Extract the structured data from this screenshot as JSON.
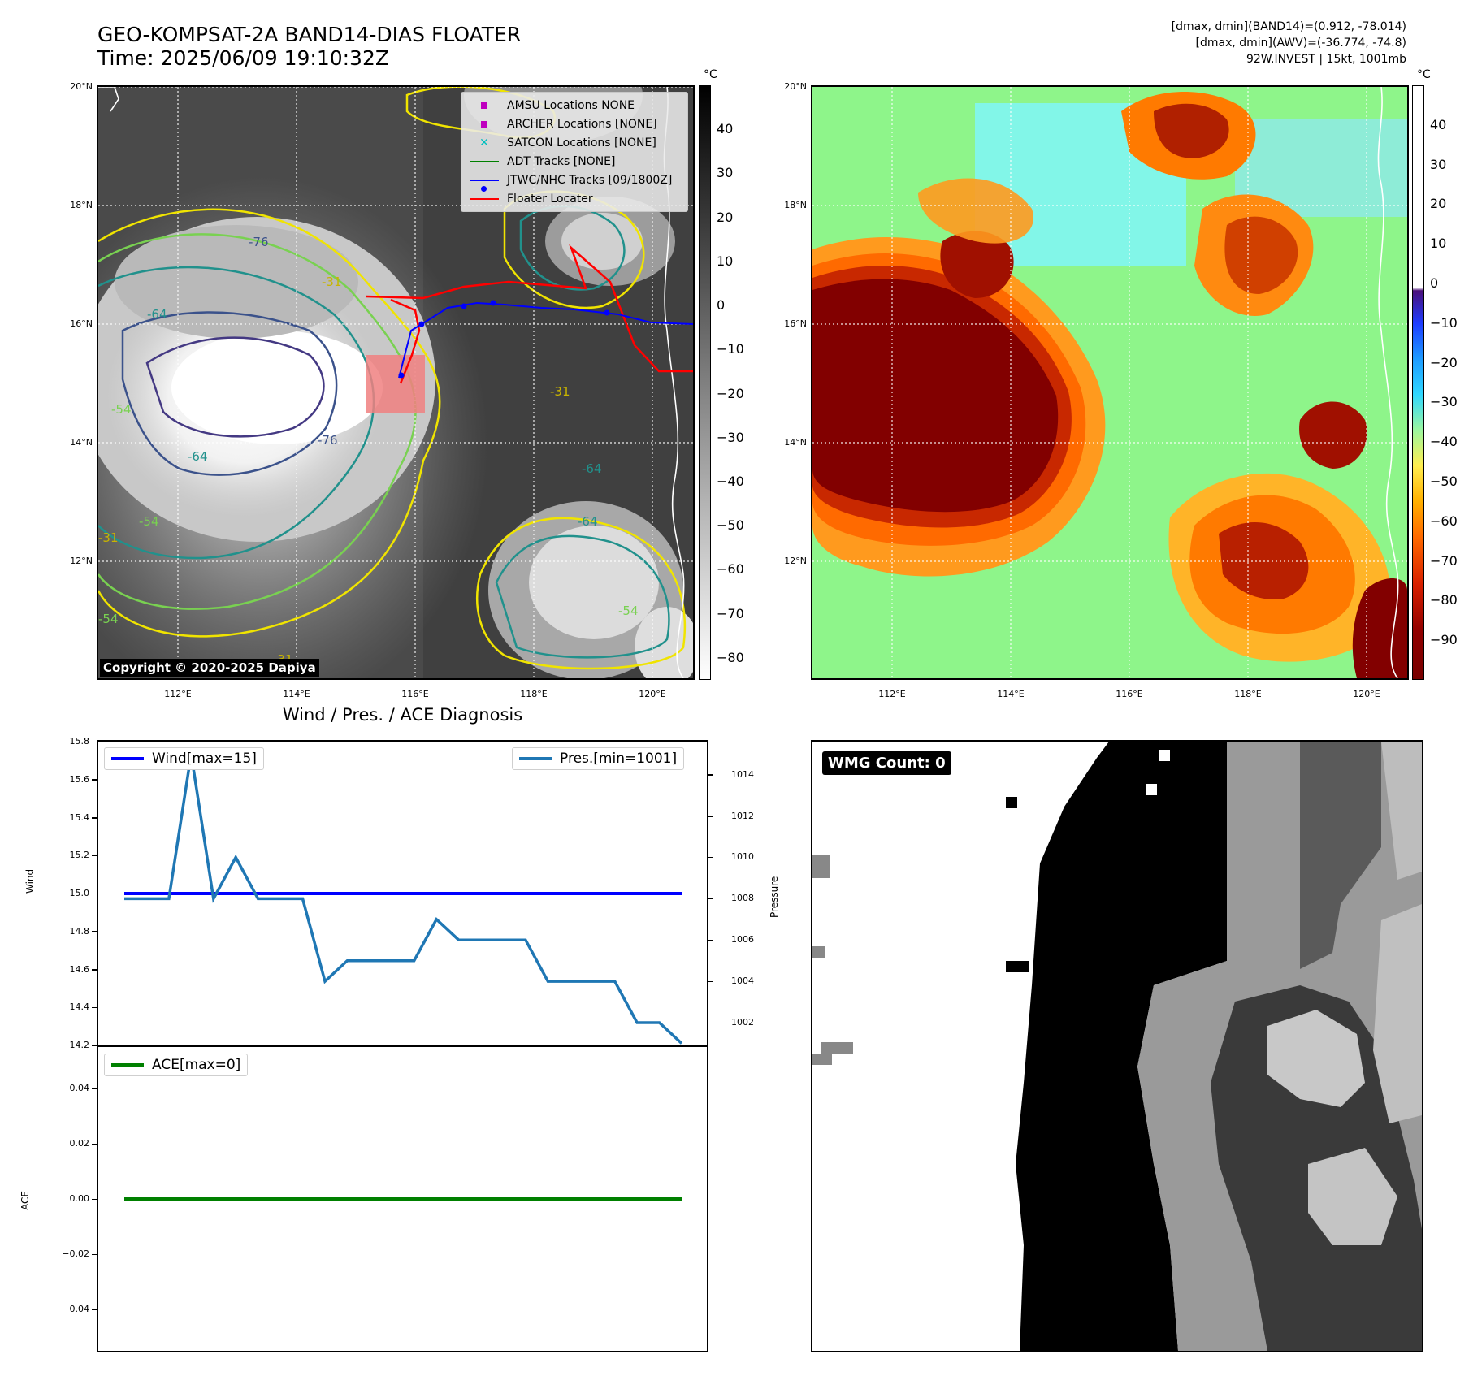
{
  "header": {
    "title_line1": "GEO-KOMPSAT-2A BAND14-DIAS FLOATER",
    "title_line2": "Time: 2025/06/09 19:10:32Z",
    "stats_line1": "[dmax, dmin](BAND14)=(0.912, -78.014)",
    "stats_line2": "[dmax, dmin](AWV)=(-36.774, -74.8)",
    "stats_line3": "92W.INVEST | 15kt, 1001mb"
  },
  "map_axes": {
    "lat_labels": [
      "20°N",
      "18°N",
      "16°N",
      "14°N",
      "12°N"
    ],
    "lon_labels": [
      "112°E",
      "114°E",
      "116°E",
      "118°E",
      "120°E"
    ]
  },
  "ir_panel": {
    "colorbar_unit": "°C",
    "colorbar_ticks": [
      "40",
      "30",
      "20",
      "10",
      "0",
      "−10",
      "−20",
      "−30",
      "−40",
      "−50",
      "−60",
      "−70",
      "−80"
    ],
    "copyright": "Copyright © 2020-2025 Dapiya",
    "legend": [
      {
        "label": "AMSU Locations NONE",
        "marker": "square",
        "color": "#bf00bf"
      },
      {
        "label": "ARCHER Locations [NONE]",
        "marker": "square",
        "color": "#bf00bf"
      },
      {
        "label": "SATCON Locations [NONE]",
        "marker": "x",
        "color": "#00bfbf"
      },
      {
        "label": "ADT Tracks [NONE]",
        "marker": "line",
        "color": "#008000"
      },
      {
        "label": "JTWC/NHC Tracks [09/1800Z]",
        "marker": "line-dot",
        "color": "#0000ff"
      },
      {
        "label": "Floater Locater",
        "marker": "line",
        "color": "#ff0000"
      }
    ],
    "contour_labels": [
      "-76",
      "-64",
      "-54",
      "-31",
      "-76",
      "-64",
      "-54",
      "-31",
      "-64",
      "-54",
      "-31",
      "-64",
      "-54",
      "-31"
    ]
  },
  "awv_panel": {
    "colorbar_unit": "°C",
    "colorbar_ticks": [
      "40",
      "30",
      "20",
      "10",
      "0",
      "−10",
      "−20",
      "−30",
      "−40",
      "−50",
      "−60",
      "−70",
      "−80",
      "−90"
    ]
  },
  "diagnosis": {
    "title": "Wind / Pres. / ACE Diagnosis",
    "wind_legend": "Wind[max=15]",
    "pres_legend": "Pres.[min=1001]",
    "ace_legend": "ACE[max=0]",
    "wind_ylabel": "Wind",
    "pres_ylabel": "Pressure",
    "ace_ylabel": "ACE"
  },
  "wmg_panel": {
    "badge": "WMG Count: 0"
  },
  "chart_data": [
    {
      "type": "line",
      "title": "Wind / Pres. / ACE Diagnosis",
      "ylabel": "Wind",
      "ylim": [
        14.2,
        15.8
      ],
      "yticks": [
        "15.8",
        "15.6",
        "15.4",
        "15.2",
        "15.0",
        "14.8",
        "14.6",
        "14.4",
        "14.2"
      ],
      "series": [
        {
          "name": "Wind[max=15]",
          "color": "#0000ff",
          "values": [
            15,
            15,
            15,
            15,
            15,
            15,
            15,
            15,
            15,
            15,
            15,
            15,
            15,
            15,
            15,
            15,
            15,
            15,
            15,
            15,
            15,
            15,
            15,
            15,
            15
          ]
        }
      ]
    },
    {
      "type": "line",
      "ylabel": "Pressure",
      "ylim": [
        1000.9,
        1015.6
      ],
      "yticks": [
        "1014",
        "1012",
        "1010",
        "1008",
        "1006",
        "1004",
        "1002"
      ],
      "series": [
        {
          "name": "Pres.[min=1001]",
          "color": "#1f77b4",
          "values": [
            1008,
            1008,
            1008,
            1015,
            1008,
            1010,
            1008,
            1008,
            1008,
            1004,
            1005,
            1005,
            1005,
            1005,
            1007,
            1006,
            1006,
            1006,
            1006,
            1004,
            1004,
            1004,
            1004,
            1002,
            1002,
            1001
          ]
        }
      ]
    },
    {
      "type": "line",
      "ylabel": "ACE",
      "ylim": [
        -0.055,
        0.055
      ],
      "yticks": [
        "0.04",
        "0.02",
        "0.00",
        "−0.02",
        "−0.04"
      ],
      "series": [
        {
          "name": "ACE[max=0]",
          "color": "#008000",
          "values": [
            0,
            0,
            0,
            0,
            0,
            0,
            0,
            0,
            0,
            0,
            0,
            0,
            0,
            0,
            0,
            0,
            0,
            0,
            0,
            0,
            0,
            0,
            0,
            0,
            0
          ]
        }
      ]
    }
  ]
}
